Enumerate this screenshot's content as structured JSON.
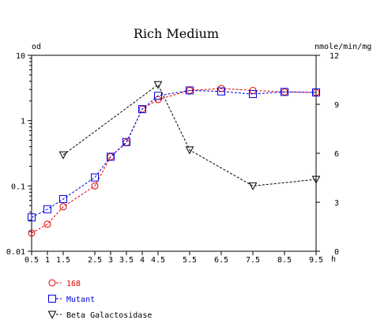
{
  "chart_data": {
    "type": "line",
    "title": "Rich Medium",
    "y_left_label": "od",
    "y_right_label": "nmole/min/mg",
    "x_unit_label": "h",
    "x_ticks": [
      "0.5",
      "1",
      "1.5",
      "2.5",
      "3",
      "3.5",
      "4",
      "4.5",
      "5.5",
      "6.5",
      "7.5",
      "8.5",
      "9.5"
    ],
    "y_left_ticks": [
      "10",
      "1",
      "0.1",
      "0.01"
    ],
    "y_left_scale": "log",
    "y_left_range": [
      0.01,
      10
    ],
    "y_right_ticks": [
      "12",
      "9",
      "6",
      "3",
      "0"
    ],
    "y_right_range": [
      0,
      12
    ],
    "series": [
      {
        "name": "168",
        "axis": "left",
        "color": "#e00000",
        "marker": "circle",
        "points": [
          {
            "x": "0.5",
            "y": 0.019
          },
          {
            "x": "1",
            "y": 0.026
          },
          {
            "x": "1.5",
            "y": 0.048
          },
          {
            "x": "2.5",
            "y": 0.1
          },
          {
            "x": "3",
            "y": 0.28
          },
          {
            "x": "3.5",
            "y": 0.46
          },
          {
            "x": "4",
            "y": 1.5
          },
          {
            "x": "4.5",
            "y": 2.1
          },
          {
            "x": "5.5",
            "y": 2.9
          },
          {
            "x": "6.5",
            "y": 3.1
          },
          {
            "x": "7.5",
            "y": 2.9
          },
          {
            "x": "8.5",
            "y": 2.75
          },
          {
            "x": "9.5",
            "y": 2.7
          }
        ]
      },
      {
        "name": "Mutant",
        "axis": "left",
        "color": "#0000e0",
        "marker": "square",
        "points": [
          {
            "x": "0.5",
            "y": 0.033
          },
          {
            "x": "1",
            "y": 0.044
          },
          {
            "x": "1.5",
            "y": 0.063
          },
          {
            "x": "2.5",
            "y": 0.135
          },
          {
            "x": "3",
            "y": 0.28
          },
          {
            "x": "3.5",
            "y": 0.47
          },
          {
            "x": "4",
            "y": 1.5
          },
          {
            "x": "4.5",
            "y": 2.4
          },
          {
            "x": "5.5",
            "y": 2.9
          },
          {
            "x": "6.5",
            "y": 2.8
          },
          {
            "x": "7.5",
            "y": 2.55
          },
          {
            "x": "8.5",
            "y": 2.75
          },
          {
            "x": "9.5",
            "y": 2.7
          }
        ]
      },
      {
        "name": "Beta Galactosidase",
        "axis": "right",
        "color": "#000000",
        "marker": "triangle-down",
        "points": [
          {
            "x": "1.5",
            "y": 5.9
          },
          {
            "x": "4.5",
            "y": 10.2
          },
          {
            "x": "5.5",
            "y": 6.2
          },
          {
            "x": "7.5",
            "y": 4.0
          },
          {
            "x": "9.5",
            "y": 4.4
          }
        ]
      }
    ],
    "legend_position": "bottom-left",
    "grid": false
  }
}
